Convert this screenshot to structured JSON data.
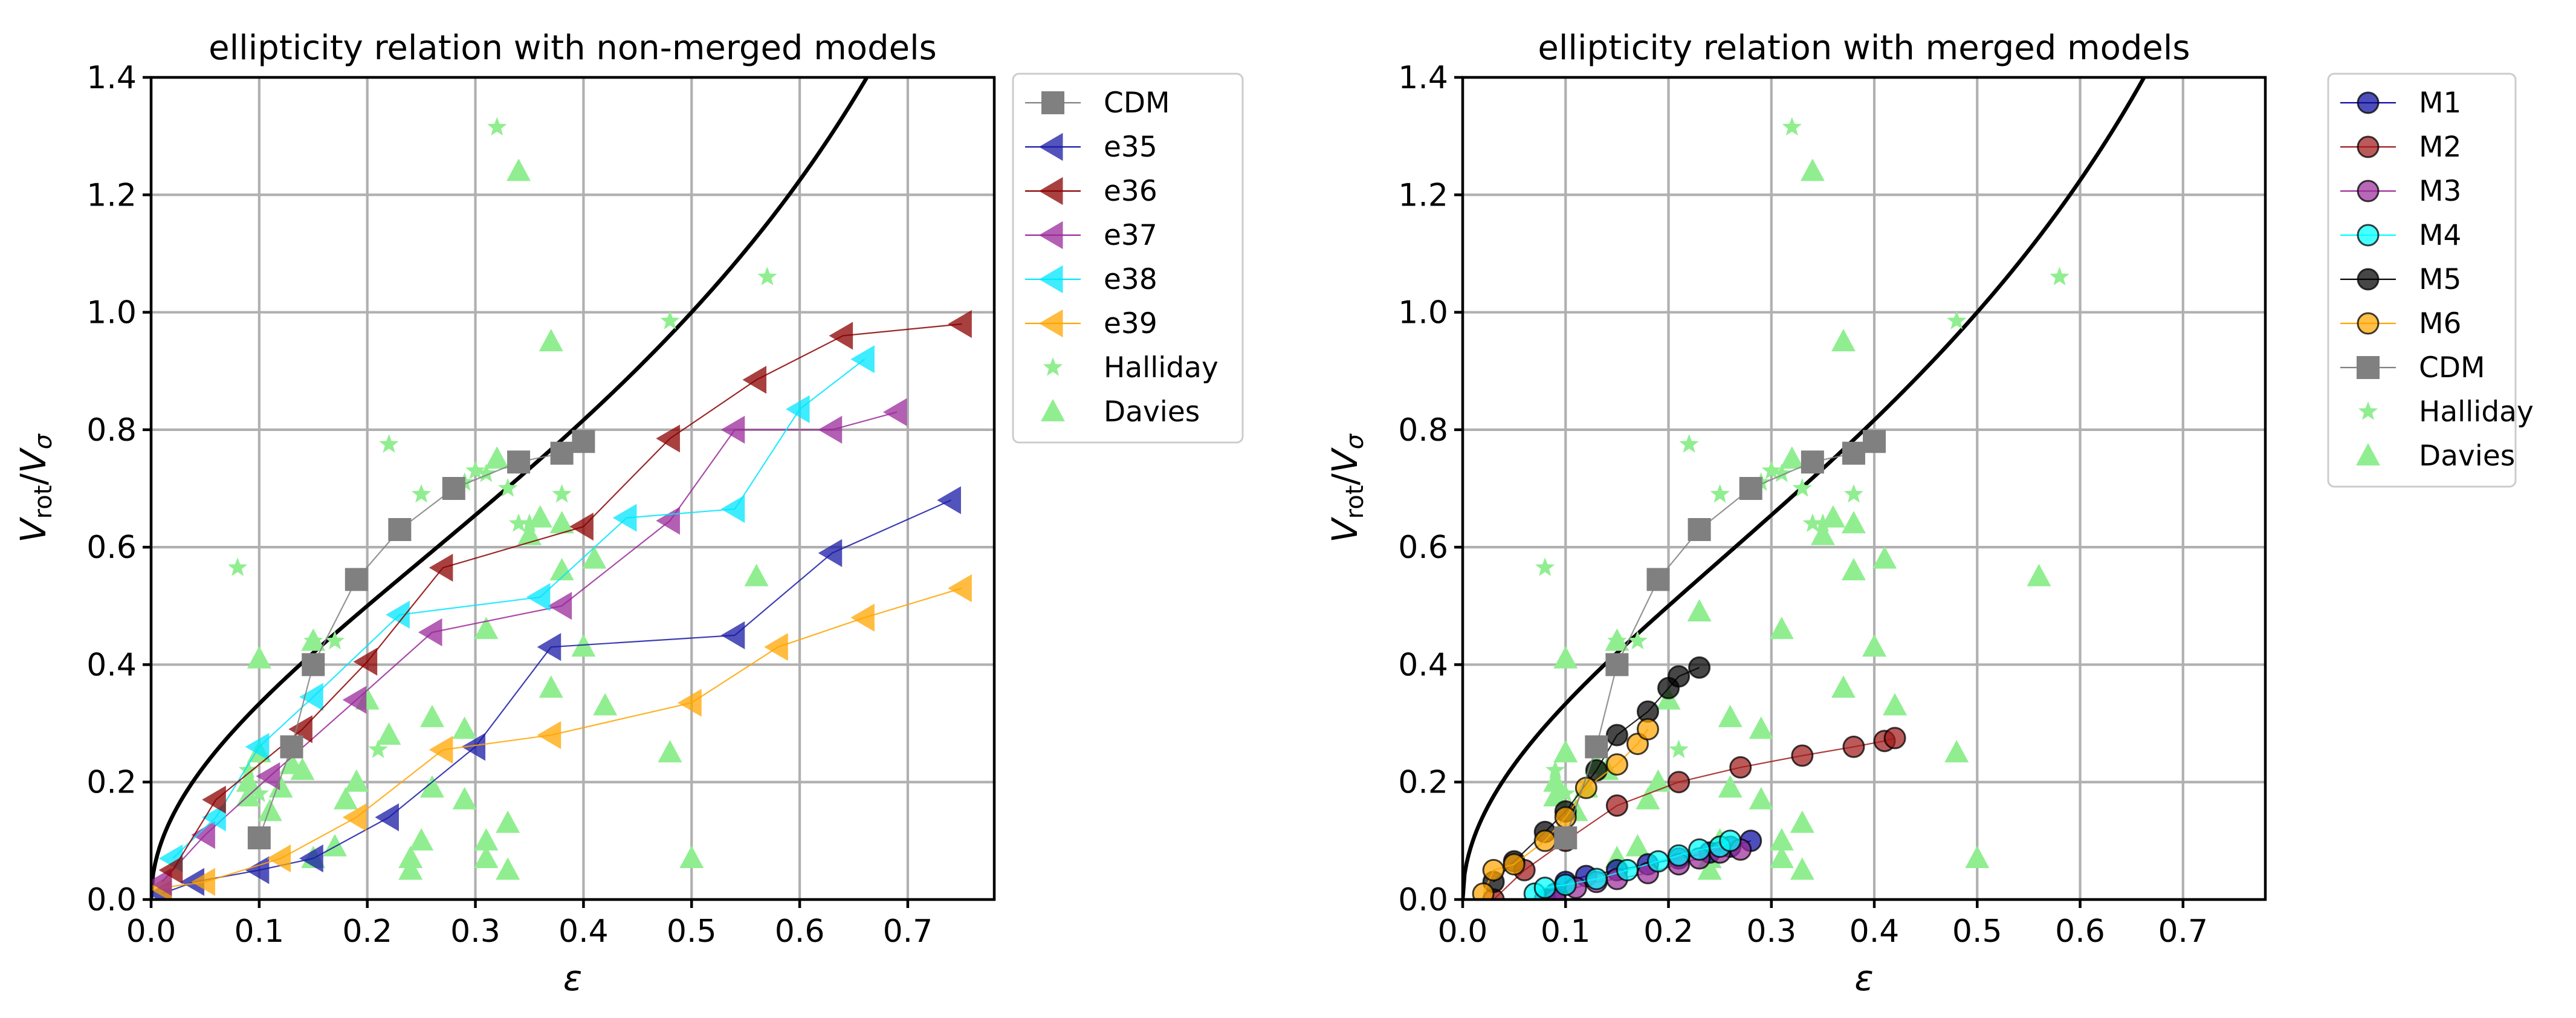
{
  "colors": {
    "CDM": "#808080",
    "e35": "#1a1aa6",
    "e36": "#8b0000",
    "e37": "#9a2a9a",
    "e38": "#00e5ff",
    "e39": "#ffa500",
    "Halliday": "#90ee90",
    "Davies": "#90ee90",
    "M1": "#0a0aa0",
    "M2": "#a11b1b",
    "M3": "#9b2e9b",
    "M4": "#00ffff",
    "M5": "#000000",
    "M6": "#ffa500",
    "theory": "#000000"
  },
  "chart_data": [
    {
      "type": "line",
      "title": "ellipticity relation with non-merged models",
      "xlabel": "ε",
      "ylabel_main": "V",
      "ylabel_sub1": "rot",
      "ylabel_sub2": "σ",
      "xlim": [
        0,
        0.78
      ],
      "ylim": [
        0,
        1.4
      ],
      "xticks": [
        0.0,
        0.1,
        0.2,
        0.3,
        0.4,
        0.5,
        0.6,
        0.7
      ],
      "xtick_labels": [
        "0.0",
        "0.1",
        "0.2",
        "0.3",
        "0.4",
        "0.5",
        "0.6",
        "0.7"
      ],
      "yticks": [
        0.0,
        0.2,
        0.4,
        0.6,
        0.8,
        1.0,
        1.2,
        1.4
      ],
      "ytick_labels": [
        "0.0",
        "0.2",
        "0.4",
        "0.6",
        "0.8",
        "1.0",
        "1.2",
        "1.4"
      ],
      "grid": true,
      "theory_curve": true,
      "legend": [
        {
          "label": "CDM",
          "marker": "square",
          "line": true
        },
        {
          "label": "e35",
          "marker": "tri-left",
          "line": true
        },
        {
          "label": "e36",
          "marker": "tri-left",
          "line": true
        },
        {
          "label": "e37",
          "marker": "tri-left",
          "line": true
        },
        {
          "label": "e38",
          "marker": "tri-left",
          "line": true
        },
        {
          "label": "e39",
          "marker": "tri-left",
          "line": true
        },
        {
          "label": "Halliday",
          "marker": "star",
          "line": false
        },
        {
          "label": "Davies",
          "marker": "tri-up",
          "line": false
        }
      ],
      "series": [
        {
          "name": "Halliday",
          "marker": "star",
          "line": false,
          "x": [
            0.08,
            0.09,
            0.1,
            0.15,
            0.17,
            0.21,
            0.22,
            0.25,
            0.29,
            0.3,
            0.31,
            0.32,
            0.33,
            0.34,
            0.35,
            0.38,
            0.48,
            0.57
          ],
          "y": [
            0.565,
            0.22,
            0.18,
            0.44,
            0.44,
            0.255,
            0.775,
            0.69,
            0.71,
            0.73,
            0.725,
            1.315,
            0.7,
            0.64,
            0.64,
            0.69,
            0.985,
            1.06
          ]
        },
        {
          "name": "Davies",
          "marker": "tri-up",
          "line": false,
          "x": [
            0.09,
            0.09,
            0.1,
            0.1,
            0.11,
            0.12,
            0.13,
            0.14,
            0.15,
            0.15,
            0.17,
            0.18,
            0.19,
            0.2,
            0.22,
            0.24,
            0.24,
            0.25,
            0.26,
            0.26,
            0.29,
            0.29,
            0.31,
            0.31,
            0.31,
            0.32,
            0.33,
            0.33,
            0.34,
            0.35,
            0.36,
            0.37,
            0.37,
            0.38,
            0.38,
            0.4,
            0.41,
            0.42,
            0.48,
            0.5,
            0.56
          ],
          "y": [
            0.175,
            0.2,
            0.41,
            0.25,
            0.15,
            0.19,
            0.23,
            0.22,
            0.07,
            0.44,
            0.09,
            0.17,
            0.2,
            0.34,
            0.28,
            0.05,
            0.07,
            0.1,
            0.31,
            0.19,
            0.29,
            0.17,
            0.46,
            0.07,
            0.1,
            0.75,
            0.05,
            0.13,
            1.24,
            0.62,
            0.65,
            0.36,
            0.95,
            0.56,
            0.64,
            0.43,
            0.58,
            0.33,
            0.25,
            0.07,
            0.55
          ]
        },
        {
          "name": "e35",
          "marker": "tri-left",
          "line": true,
          "x": [
            0.01,
            0.04,
            0.1,
            0.15,
            0.22,
            0.3,
            0.37,
            0.54,
            0.63,
            0.74
          ],
          "y": [
            0.01,
            0.03,
            0.05,
            0.07,
            0.14,
            0.26,
            0.43,
            0.45,
            0.59,
            0.68
          ]
        },
        {
          "name": "e39",
          "marker": "tri-left",
          "line": true,
          "x": [
            0.01,
            0.05,
            0.12,
            0.19,
            0.27,
            0.37,
            0.5,
            0.58,
            0.66,
            0.75
          ],
          "y": [
            0.02,
            0.03,
            0.07,
            0.14,
            0.255,
            0.28,
            0.335,
            0.43,
            0.48,
            0.53
          ]
        },
        {
          "name": "e37",
          "marker": "tri-left",
          "line": true,
          "x": [
            0.01,
            0.05,
            0.11,
            0.19,
            0.26,
            0.38,
            0.48,
            0.54,
            0.63,
            0.69
          ],
          "y": [
            0.03,
            0.11,
            0.21,
            0.34,
            0.455,
            0.5,
            0.645,
            0.8,
            0.8,
            0.83
          ]
        },
        {
          "name": "e38",
          "marker": "tri-left",
          "line": true,
          "x": [
            0.02,
            0.06,
            0.1,
            0.15,
            0.23,
            0.36,
            0.44,
            0.54,
            0.6,
            0.66
          ],
          "y": [
            0.07,
            0.14,
            0.26,
            0.345,
            0.485,
            0.515,
            0.65,
            0.665,
            0.835,
            0.92
          ]
        },
        {
          "name": "e36",
          "marker": "tri-left",
          "line": true,
          "x": [
            0.02,
            0.06,
            0.14,
            0.2,
            0.27,
            0.4,
            0.48,
            0.56,
            0.64,
            0.75
          ],
          "y": [
            0.05,
            0.17,
            0.29,
            0.405,
            0.565,
            0.635,
            0.785,
            0.885,
            0.96,
            0.98
          ]
        },
        {
          "name": "CDM",
          "marker": "square",
          "line": true,
          "x": [
            0.1,
            0.13,
            0.15,
            0.19,
            0.23,
            0.28,
            0.34,
            0.38,
            0.4
          ],
          "y": [
            0.105,
            0.26,
            0.4,
            0.545,
            0.63,
            0.7,
            0.745,
            0.76,
            0.78
          ]
        }
      ]
    },
    {
      "type": "line",
      "title": "ellipticity relation with merged models",
      "xlabel": "ε",
      "ylabel_main": "V",
      "ylabel_sub1": "rot",
      "ylabel_sub2": "σ",
      "xlim": [
        0,
        0.78
      ],
      "ylim": [
        0,
        1.4
      ],
      "xticks": [
        0.0,
        0.1,
        0.2,
        0.3,
        0.4,
        0.5,
        0.6,
        0.7
      ],
      "xtick_labels": [
        "0.0",
        "0.1",
        "0.2",
        "0.3",
        "0.4",
        "0.5",
        "0.6",
        "0.7"
      ],
      "yticks": [
        0.0,
        0.2,
        0.4,
        0.6,
        0.8,
        1.0,
        1.2,
        1.4
      ],
      "ytick_labels": [
        "0.0",
        "0.2",
        "0.4",
        "0.6",
        "0.8",
        "1.0",
        "1.2",
        "1.4"
      ],
      "grid": true,
      "theory_curve": true,
      "legend": [
        {
          "label": "M1",
          "marker": "circle",
          "line": true
        },
        {
          "label": "M2",
          "marker": "circle",
          "line": true
        },
        {
          "label": "M3",
          "marker": "circle",
          "line": true
        },
        {
          "label": "M4",
          "marker": "circle",
          "line": true
        },
        {
          "label": "M5",
          "marker": "circle",
          "line": true
        },
        {
          "label": "M6",
          "marker": "circle",
          "line": true
        },
        {
          "label": "CDM",
          "marker": "square",
          "line": true
        },
        {
          "label": "Halliday",
          "marker": "star",
          "line": false
        },
        {
          "label": "Davies",
          "marker": "tri-up",
          "line": false
        }
      ],
      "series": [
        {
          "name": "Halliday",
          "marker": "star",
          "line": false,
          "x": [
            0.08,
            0.09,
            0.1,
            0.15,
            0.17,
            0.21,
            0.22,
            0.25,
            0.29,
            0.3,
            0.31,
            0.32,
            0.33,
            0.34,
            0.35,
            0.38,
            0.48,
            0.58
          ],
          "y": [
            0.565,
            0.22,
            0.18,
            0.44,
            0.44,
            0.255,
            0.775,
            0.69,
            0.71,
            0.73,
            0.725,
            1.315,
            0.7,
            0.64,
            0.64,
            0.69,
            0.985,
            1.06
          ]
        },
        {
          "name": "Davies",
          "marker": "tri-up",
          "line": false,
          "x": [
            0.09,
            0.09,
            0.1,
            0.1,
            0.11,
            0.12,
            0.13,
            0.14,
            0.15,
            0.15,
            0.17,
            0.18,
            0.19,
            0.2,
            0.23,
            0.24,
            0.24,
            0.25,
            0.26,
            0.26,
            0.29,
            0.29,
            0.31,
            0.31,
            0.31,
            0.32,
            0.33,
            0.33,
            0.34,
            0.35,
            0.36,
            0.37,
            0.37,
            0.38,
            0.38,
            0.4,
            0.41,
            0.42,
            0.48,
            0.5,
            0.56
          ],
          "y": [
            0.175,
            0.2,
            0.41,
            0.25,
            0.15,
            0.19,
            0.23,
            0.22,
            0.07,
            0.44,
            0.09,
            0.17,
            0.2,
            0.34,
            0.49,
            0.05,
            0.07,
            0.1,
            0.31,
            0.19,
            0.29,
            0.17,
            0.46,
            0.07,
            0.1,
            0.75,
            0.05,
            0.13,
            1.24,
            0.62,
            0.65,
            0.36,
            0.95,
            0.56,
            0.64,
            0.43,
            0.58,
            0.33,
            0.25,
            0.07,
            0.55
          ]
        },
        {
          "name": "M1",
          "marker": "circle",
          "line": true,
          "x": [
            0.08,
            0.09,
            0.1,
            0.12,
            0.15,
            0.18,
            0.21,
            0.24,
            0.26,
            0.28
          ],
          "y": [
            0.0,
            0.01,
            0.03,
            0.04,
            0.05,
            0.06,
            0.07,
            0.08,
            0.09,
            0.1
          ]
        },
        {
          "name": "M2",
          "marker": "circle",
          "line": true,
          "x": [
            0.03,
            0.06,
            0.1,
            0.15,
            0.21,
            0.27,
            0.33,
            0.38,
            0.41,
            0.42
          ],
          "y": [
            0.0,
            0.05,
            0.1,
            0.16,
            0.2,
            0.225,
            0.245,
            0.26,
            0.27,
            0.275
          ]
        },
        {
          "name": "M3",
          "marker": "circle",
          "line": true,
          "x": [
            0.09,
            0.11,
            0.13,
            0.15,
            0.18,
            0.21,
            0.23,
            0.25,
            0.27
          ],
          "y": [
            0.0,
            0.02,
            0.03,
            0.035,
            0.045,
            0.06,
            0.07,
            0.08,
            0.085
          ]
        },
        {
          "name": "M4",
          "marker": "circle",
          "line": true,
          "x": [
            0.07,
            0.08,
            0.1,
            0.13,
            0.16,
            0.19,
            0.21,
            0.23,
            0.25,
            0.26
          ],
          "y": [
            0.01,
            0.02,
            0.025,
            0.035,
            0.05,
            0.065,
            0.075,
            0.085,
            0.09,
            0.1
          ]
        },
        {
          "name": "M5",
          "marker": "circle",
          "line": true,
          "x": [
            0.03,
            0.05,
            0.08,
            0.1,
            0.13,
            0.15,
            0.18,
            0.2,
            0.21,
            0.23
          ],
          "y": [
            0.03,
            0.065,
            0.115,
            0.15,
            0.22,
            0.28,
            0.32,
            0.36,
            0.38,
            0.395
          ]
        },
        {
          "name": "M6",
          "marker": "circle",
          "line": true,
          "x": [
            0.02,
            0.03,
            0.05,
            0.08,
            0.1,
            0.12,
            0.15,
            0.17,
            0.18
          ],
          "y": [
            0.01,
            0.05,
            0.06,
            0.1,
            0.14,
            0.19,
            0.23,
            0.265,
            0.29
          ]
        },
        {
          "name": "CDM",
          "marker": "square",
          "line": true,
          "x": [
            0.1,
            0.13,
            0.15,
            0.19,
            0.23,
            0.28,
            0.34,
            0.38,
            0.4
          ],
          "y": [
            0.105,
            0.26,
            0.4,
            0.545,
            0.63,
            0.7,
            0.745,
            0.76,
            0.78
          ]
        }
      ]
    }
  ]
}
